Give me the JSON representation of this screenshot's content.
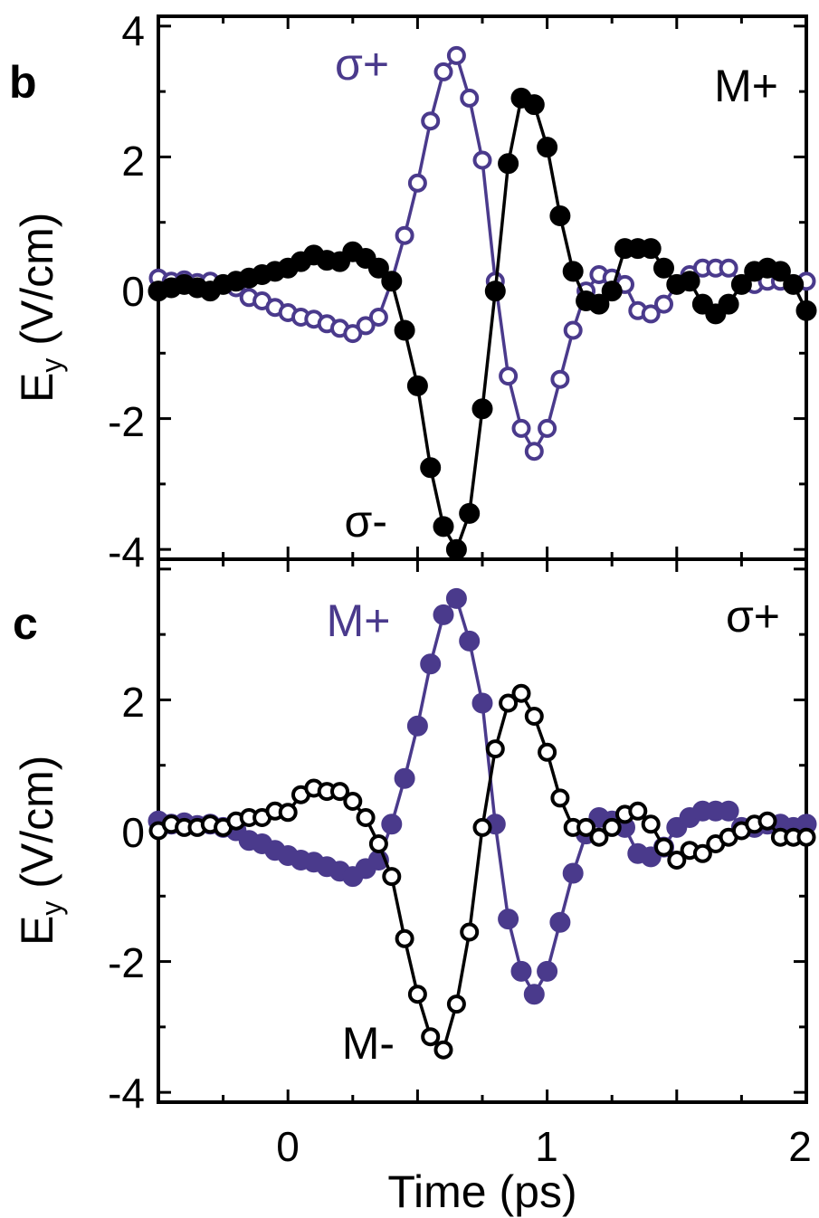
{
  "colors": {
    "black": "#000000",
    "purple": "#4a3a8c"
  },
  "chart_data": [
    {
      "type": "scatter",
      "panel_letter": "b",
      "xlabel": "",
      "ylabel": "E",
      "ylabel_sub": "y",
      "ylabel_unit": " (V/cm)",
      "xlim": [
        -0.5,
        2.0
      ],
      "ylim": [
        -4.15,
        4.15
      ],
      "yticks": [
        4,
        2,
        0,
        -2,
        -4
      ],
      "ytick_labels": [
        "4",
        "2",
        "0",
        "-2",
        "-4"
      ],
      "annotations": [
        {
          "text": "σ+",
          "color": "#4a3a8c",
          "anchor": "top-center"
        },
        {
          "text": "M+",
          "color": "#000000",
          "anchor": "top-right"
        },
        {
          "text": "σ-",
          "color": "#000000",
          "anchor": "bottom-center"
        }
      ],
      "series": [
        {
          "color": "#4a3a8c",
          "marker": "open",
          "points": [
            [
              -0.5,
              0.15
            ],
            [
              -0.45,
              0.1
            ],
            [
              -0.4,
              0.12
            ],
            [
              -0.35,
              0.08
            ],
            [
              -0.3,
              0.1
            ],
            [
              -0.25,
              0.05
            ],
            [
              -0.2,
              0
            ],
            [
              -0.15,
              -0.15
            ],
            [
              -0.1,
              -0.2
            ],
            [
              -0.05,
              -0.3
            ],
            [
              0,
              -0.38
            ],
            [
              0.05,
              -0.45
            ],
            [
              0.1,
              -0.48
            ],
            [
              0.15,
              -0.55
            ],
            [
              0.2,
              -0.62
            ],
            [
              0.25,
              -0.7
            ],
            [
              0.3,
              -0.58
            ],
            [
              0.35,
              -0.45
            ],
            [
              0.4,
              0.1
            ],
            [
              0.45,
              0.8
            ],
            [
              0.5,
              1.6
            ],
            [
              0.55,
              2.55
            ],
            [
              0.6,
              3.3
            ],
            [
              0.65,
              3.55
            ],
            [
              0.7,
              2.9
            ],
            [
              0.75,
              1.95
            ],
            [
              0.8,
              0.1
            ],
            [
              0.85,
              -1.35
            ],
            [
              0.9,
              -2.15
            ],
            [
              0.95,
              -2.5
            ],
            [
              1.0,
              -2.15
            ],
            [
              1.05,
              -1.4
            ],
            [
              1.1,
              -0.65
            ],
            [
              1.15,
              -0.05
            ],
            [
              1.2,
              0.2
            ],
            [
              1.25,
              0.15
            ],
            [
              1.3,
              0.05
            ],
            [
              1.35,
              -0.35
            ],
            [
              1.4,
              -0.4
            ],
            [
              1.45,
              -0.25
            ],
            [
              1.5,
              0.05
            ],
            [
              1.55,
              0.2
            ],
            [
              1.6,
              0.3
            ],
            [
              1.65,
              0.3
            ],
            [
              1.7,
              0.3
            ],
            [
              1.75,
              0.05
            ],
            [
              1.8,
              0.05
            ],
            [
              1.85,
              0.1
            ],
            [
              1.9,
              0.1
            ],
            [
              1.95,
              0.05
            ],
            [
              2.0,
              0.1
            ]
          ]
        },
        {
          "color": "#000000",
          "marker": "filled",
          "points": [
            [
              -0.5,
              -0.05
            ],
            [
              -0.45,
              0
            ],
            [
              -0.4,
              0.05
            ],
            [
              -0.35,
              0
            ],
            [
              -0.3,
              -0.05
            ],
            [
              -0.25,
              0.05
            ],
            [
              -0.2,
              0.1
            ],
            [
              -0.15,
              0.15
            ],
            [
              -0.1,
              0.2
            ],
            [
              -0.05,
              0.25
            ],
            [
              0,
              0.3
            ],
            [
              0.05,
              0.4
            ],
            [
              0.1,
              0.5
            ],
            [
              0.15,
              0.42
            ],
            [
              0.2,
              0.4
            ],
            [
              0.25,
              0.55
            ],
            [
              0.3,
              0.45
            ],
            [
              0.35,
              0.3
            ],
            [
              0.4,
              0.1
            ],
            [
              0.45,
              -0.65
            ],
            [
              0.5,
              -1.5
            ],
            [
              0.55,
              -2.75
            ],
            [
              0.6,
              -3.65
            ],
            [
              0.65,
              -4.0
            ],
            [
              0.7,
              -3.45
            ],
            [
              0.75,
              -1.85
            ],
            [
              0.8,
              -0.05
            ],
            [
              0.85,
              1.9
            ],
            [
              0.9,
              2.9
            ],
            [
              0.95,
              2.8
            ],
            [
              1.0,
              2.15
            ],
            [
              1.05,
              1.1
            ],
            [
              1.1,
              0.25
            ],
            [
              1.15,
              -0.2
            ],
            [
              1.2,
              -0.25
            ],
            [
              1.25,
              -0.05
            ],
            [
              1.3,
              0.6
            ],
            [
              1.35,
              0.6
            ],
            [
              1.4,
              0.6
            ],
            [
              1.45,
              0.3
            ],
            [
              1.5,
              0.05
            ],
            [
              1.55,
              0.1
            ],
            [
              1.6,
              -0.25
            ],
            [
              1.65,
              -0.4
            ],
            [
              1.7,
              -0.25
            ],
            [
              1.75,
              0.05
            ],
            [
              1.8,
              0.25
            ],
            [
              1.85,
              0.3
            ],
            [
              1.9,
              0.25
            ],
            [
              1.95,
              0.05
            ],
            [
              2.0,
              -0.35
            ]
          ]
        }
      ]
    },
    {
      "type": "scatter",
      "panel_letter": "c",
      "xlabel": "Time (ps)",
      "ylabel": "E",
      "ylabel_sub": "y",
      "ylabel_unit": " (V/cm)",
      "xlim": [
        -0.5,
        2.0
      ],
      "ylim": [
        -4.15,
        4.15
      ],
      "xticks": [
        0,
        1,
        2
      ],
      "xtick_labels": [
        "0",
        "1",
        "2"
      ],
      "yticks": [
        2,
        0,
        -2,
        -4
      ],
      "ytick_labels": [
        "2",
        "0",
        "-2",
        "-4"
      ],
      "annotations": [
        {
          "text": "M+",
          "color": "#4a3a8c",
          "anchor": "top-center"
        },
        {
          "text": "σ+",
          "color": "#000000",
          "anchor": "top-right"
        },
        {
          "text": "M-",
          "color": "#000000",
          "anchor": "bottom-center"
        }
      ],
      "series": [
        {
          "color": "#4a3a8c",
          "marker": "filled",
          "points": [
            [
              -0.5,
              0.15
            ],
            [
              -0.45,
              0.1
            ],
            [
              -0.4,
              0.12
            ],
            [
              -0.35,
              0.08
            ],
            [
              -0.3,
              0.1
            ],
            [
              -0.25,
              0.05
            ],
            [
              -0.2,
              0
            ],
            [
              -0.15,
              -0.15
            ],
            [
              -0.1,
              -0.2
            ],
            [
              -0.05,
              -0.3
            ],
            [
              0,
              -0.38
            ],
            [
              0.05,
              -0.45
            ],
            [
              0.1,
              -0.48
            ],
            [
              0.15,
              -0.55
            ],
            [
              0.2,
              -0.62
            ],
            [
              0.25,
              -0.7
            ],
            [
              0.3,
              -0.58
            ],
            [
              0.35,
              -0.45
            ],
            [
              0.4,
              0.1
            ],
            [
              0.45,
              0.8
            ],
            [
              0.5,
              1.6
            ],
            [
              0.55,
              2.55
            ],
            [
              0.6,
              3.3
            ],
            [
              0.65,
              3.55
            ],
            [
              0.7,
              2.9
            ],
            [
              0.75,
              1.95
            ],
            [
              0.8,
              0.1
            ],
            [
              0.85,
              -1.35
            ],
            [
              0.9,
              -2.15
            ],
            [
              0.95,
              -2.5
            ],
            [
              1.0,
              -2.15
            ],
            [
              1.05,
              -1.4
            ],
            [
              1.1,
              -0.65
            ],
            [
              1.15,
              -0.05
            ],
            [
              1.2,
              0.2
            ],
            [
              1.25,
              0.15
            ],
            [
              1.3,
              0.05
            ],
            [
              1.35,
              -0.35
            ],
            [
              1.4,
              -0.4
            ],
            [
              1.45,
              -0.25
            ],
            [
              1.5,
              0.05
            ],
            [
              1.55,
              0.2
            ],
            [
              1.6,
              0.3
            ],
            [
              1.65,
              0.3
            ],
            [
              1.7,
              0.3
            ],
            [
              1.75,
              0.05
            ],
            [
              1.8,
              0.05
            ],
            [
              1.85,
              0.1
            ],
            [
              1.9,
              0.1
            ],
            [
              1.95,
              0.05
            ],
            [
              2.0,
              0.1
            ]
          ]
        },
        {
          "color": "#000000",
          "marker": "open",
          "points": [
            [
              -0.5,
              0
            ],
            [
              -0.45,
              0.1
            ],
            [
              -0.4,
              0.05
            ],
            [
              -0.35,
              0.05
            ],
            [
              -0.3,
              0.1
            ],
            [
              -0.25,
              0.05
            ],
            [
              -0.2,
              0.15
            ],
            [
              -0.15,
              0.2
            ],
            [
              -0.1,
              0.2
            ],
            [
              -0.05,
              0.3
            ],
            [
              0,
              0.28
            ],
            [
              0.05,
              0.55
            ],
            [
              0.1,
              0.65
            ],
            [
              0.15,
              0.6
            ],
            [
              0.2,
              0.6
            ],
            [
              0.25,
              0.45
            ],
            [
              0.3,
              0.2
            ],
            [
              0.35,
              -0.2
            ],
            [
              0.4,
              -0.7
            ],
            [
              0.45,
              -1.65
            ],
            [
              0.5,
              -2.5
            ],
            [
              0.55,
              -3.15
            ],
            [
              0.6,
              -3.35
            ],
            [
              0.65,
              -2.65
            ],
            [
              0.7,
              -1.55
            ],
            [
              0.75,
              0.05
            ],
            [
              0.8,
              1.25
            ],
            [
              0.85,
              1.95
            ],
            [
              0.9,
              2.1
            ],
            [
              0.95,
              1.75
            ],
            [
              1.0,
              1.2
            ],
            [
              1.05,
              0.5
            ],
            [
              1.1,
              0.05
            ],
            [
              1.15,
              0.05
            ],
            [
              1.2,
              -0.1
            ],
            [
              1.25,
              0.05
            ],
            [
              1.3,
              0.25
            ],
            [
              1.35,
              0.3
            ],
            [
              1.4,
              0.1
            ],
            [
              1.45,
              -0.25
            ],
            [
              1.5,
              -0.45
            ],
            [
              1.55,
              -0.3
            ],
            [
              1.6,
              -0.35
            ],
            [
              1.65,
              -0.2
            ],
            [
              1.7,
              -0.1
            ],
            [
              1.75,
              0
            ],
            [
              1.8,
              0.1
            ],
            [
              1.85,
              0.15
            ],
            [
              1.9,
              -0.1
            ],
            [
              1.95,
              -0.1
            ],
            [
              2.0,
              -0.1
            ]
          ]
        }
      ]
    }
  ]
}
